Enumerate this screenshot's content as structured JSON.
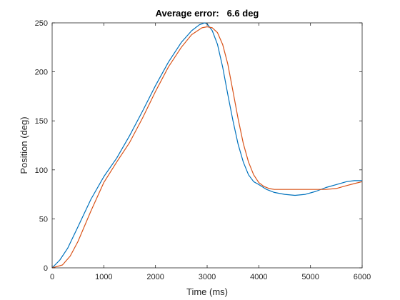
{
  "chart_data": {
    "type": "line",
    "title": "Average error:   6.6 deg",
    "xlabel": "Time (ms)",
    "ylabel": "Position (deg)",
    "xlim": [
      0,
      6000
    ],
    "ylim": [
      0,
      250
    ],
    "xticks": [
      0,
      1000,
      2000,
      3000,
      4000,
      5000,
      6000
    ],
    "yticks": [
      0,
      50,
      100,
      150,
      200,
      250
    ],
    "grid": false,
    "legend": "none",
    "series": [
      {
        "color": "#0072BD",
        "x": [
          0,
          150,
          300,
          500,
          750,
          1000,
          1250,
          1500,
          1750,
          2000,
          2250,
          2500,
          2700,
          2850,
          2950,
          3000,
          3100,
          3200,
          3300,
          3400,
          3500,
          3600,
          3700,
          3800,
          3900,
          4000,
          4150,
          4300,
          4500,
          4700,
          4900,
          5100,
          5300,
          5500,
          5700,
          5850,
          6000
        ],
        "y": [
          0,
          8,
          20,
          42,
          70,
          93,
          112,
          135,
          160,
          186,
          210,
          230,
          242,
          248,
          250,
          249,
          242,
          228,
          205,
          177,
          150,
          126,
          108,
          95,
          88,
          85,
          80,
          77,
          75,
          74,
          75,
          78,
          82,
          85,
          88,
          89,
          89
        ]
      },
      {
        "color": "#D95319",
        "x": [
          0,
          200,
          350,
          500,
          750,
          1000,
          1250,
          1500,
          1750,
          2000,
          2250,
          2500,
          2700,
          2900,
          3000,
          3100,
          3200,
          3300,
          3400,
          3500,
          3600,
          3700,
          3800,
          3900,
          4000,
          4100,
          4200,
          4300,
          4500,
          4700,
          4900,
          5100,
          5300,
          5500,
          5700,
          5850,
          6000
        ],
        "y": [
          0,
          3,
          12,
          27,
          58,
          87,
          108,
          128,
          153,
          180,
          205,
          225,
          238,
          245,
          246,
          245,
          240,
          228,
          208,
          180,
          152,
          127,
          108,
          95,
          87,
          83,
          81,
          80,
          80,
          80,
          80,
          80,
          80,
          81,
          84,
          86,
          88
        ]
      }
    ]
  }
}
